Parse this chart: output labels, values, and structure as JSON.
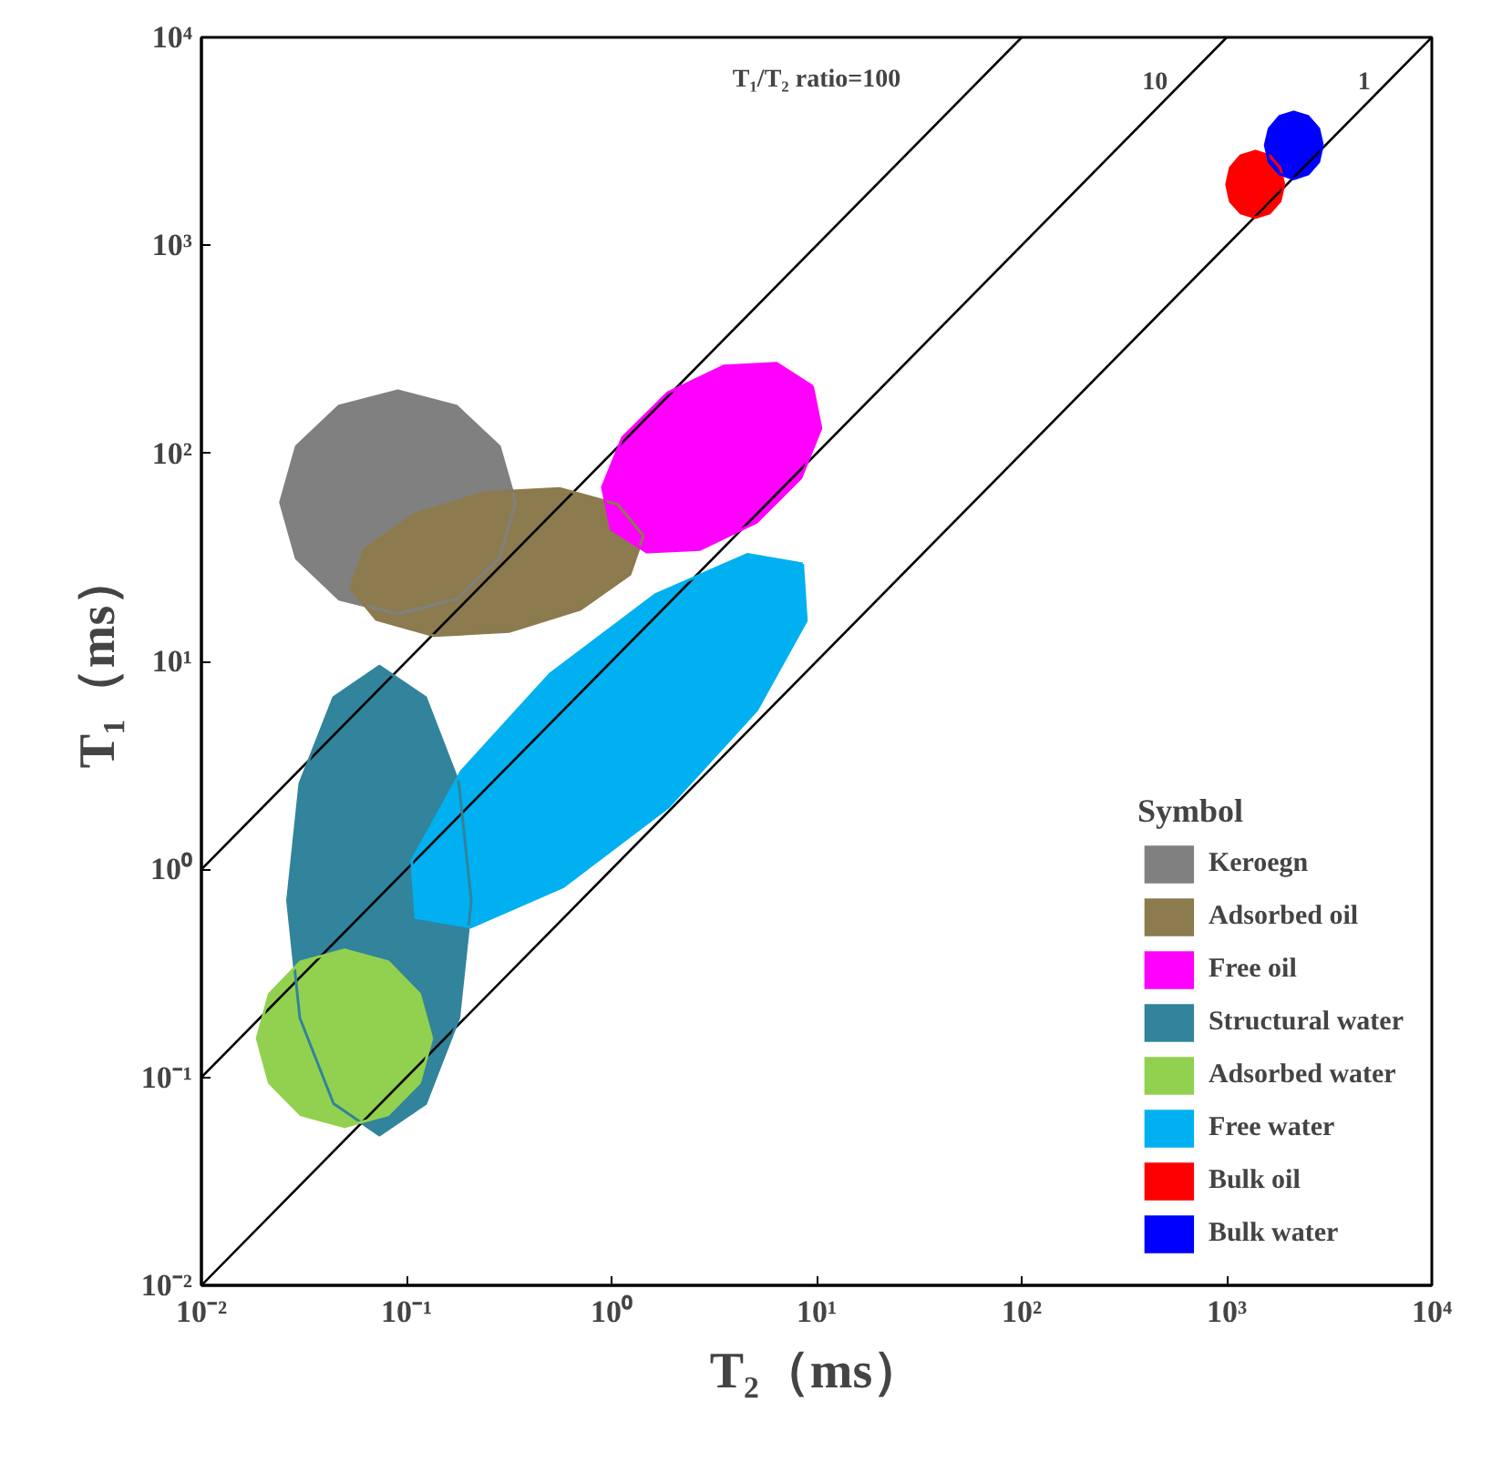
{
  "chart_data": {
    "type": "area",
    "xlabel": "T₂（ms）",
    "ylabel": "T₁（ms）",
    "legend_title": "Symbol",
    "legend": "bottom right",
    "grid": false,
    "log": "xy",
    "xlim": [
      0.01,
      10000
    ],
    "ylim": [
      0.01,
      10000
    ],
    "xticks": [
      {
        "value": 0.01,
        "label": "10⁻²"
      },
      {
        "value": 0.1,
        "label": "10⁻¹"
      },
      {
        "value": 1,
        "label": "10⁰"
      },
      {
        "value": 10,
        "label": "10¹"
      },
      {
        "value": 100,
        "label": "10²"
      },
      {
        "value": 1000,
        "label": "10³"
      },
      {
        "value": 10000,
        "label": "10⁴"
      }
    ],
    "yticks": [
      {
        "value": 0.01,
        "label": "10⁻²"
      },
      {
        "value": 0.1,
        "label": "10⁻¹"
      },
      {
        "value": 1,
        "label": "10⁰"
      },
      {
        "value": 10,
        "label": "10¹"
      },
      {
        "value": 100,
        "label": "10²"
      },
      {
        "value": 1000,
        "label": "10³"
      },
      {
        "value": 10000,
        "label": "10⁴"
      }
    ],
    "annotations": [
      "T₁/T₂ ratio=100",
      "10",
      "1"
    ],
    "series": [
      {
        "name": "Keroegn",
        "color": "#808080",
        "x": [
          0.34,
          0.284,
          0.175,
          0.0908,
          0.0469,
          0.029,
          0.0243,
          0.029,
          0.0469,
          0.0908,
          0.175,
          0.284
        ],
        "values": [
          58.1,
          108,
          169,
          200,
          169,
          108,
          58.1,
          31.3,
          19.9,
          16.9,
          19.9,
          31.3
        ]
      },
      {
        "name": "Adsorbed oil",
        "color": "#8c7b4e",
        "x": [
          1.43,
          1.07,
          0.558,
          0.241,
          0.108,
          0.0621,
          0.0533,
          0.0713,
          0.136,
          0.316,
          0.706,
          1.23
        ],
        "values": [
          40.2,
          56.9,
          67.8,
          65.0,
          50.7,
          34.4,
          22.5,
          15.9,
          13.3,
          13.9,
          17.8,
          26.2
        ]
      },
      {
        "name": "Free oil",
        "color": "#ff00ff",
        "x": [
          9.55,
          6.38,
          3.52,
          1.87,
          1.13,
          0.902,
          0.995,
          1.49,
          2.7,
          5.09,
          8.39,
          10.5
        ],
        "values": [
          210,
          271,
          263,
          195,
          119,
          68.7,
          43.2,
          33.5,
          34.5,
          46.6,
          76.2,
          132
        ]
      },
      {
        "name": "Structural water",
        "color": "#31849b",
        "x": [
          0.207,
          0.18,
          0.124,
          0.0738,
          0.0441,
          0.0302,
          0.0263,
          0.0302,
          0.0441,
          0.0738,
          0.124,
          0.18
        ],
        "values": [
          0.708,
          2.59,
          6.7,
          9.48,
          6.7,
          2.59,
          0.708,
          0.193,
          0.0748,
          0.0528,
          0.0748,
          0.193
        ]
      },
      {
        "name": "Adsorbed water",
        "color": "#92d050",
        "x": [
          0.133,
          0.116,
          0.0813,
          0.0499,
          0.0305,
          0.0214,
          0.0187,
          0.0214,
          0.0305,
          0.0499,
          0.0813,
          0.116
        ],
        "values": [
          0.154,
          0.251,
          0.36,
          0.41,
          0.36,
          0.251,
          0.154,
          0.0944,
          0.0661,
          0.0579,
          0.0661,
          0.0944
        ]
      },
      {
        "name": "Free water",
        "color": "#00b0f0",
        "x": [
          8.55,
          4.59,
          1.63,
          0.501,
          0.185,
          0.106,
          0.111,
          0.206,
          0.582,
          1.89,
          5.12,
          8.91
        ],
        "values": [
          29.4,
          32.7,
          20.9,
          8.69,
          2.96,
          1.1,
          0.587,
          0.528,
          0.826,
          1.99,
          5.85,
          15.7
        ]
      },
      {
        "name": "Bulk oil",
        "color": "#ff0000",
        "x": [
          1900,
          1820,
          1620,
          1380,
          1170,
          1040,
          998,
          1040,
          1170,
          1380,
          1620,
          1820
        ],
        "values": [
          1960,
          2360,
          2700,
          2840,
          2700,
          2360,
          1960,
          1630,
          1430,
          1360,
          1430,
          1630
        ]
      },
      {
        "name": "Bulk water",
        "color": "#0000ff",
        "x": [
          2930,
          2810,
          2490,
          2120,
          1810,
          1610,
          1540,
          1610,
          1810,
          2120,
          2490,
          2810
        ],
        "values": [
          3030,
          3640,
          4170,
          4380,
          4170,
          3640,
          3030,
          2520,
          2200,
          2090,
          2200,
          2520
        ]
      },
      {
        "type": "line",
        "color": "#000000",
        "x": [
          0.01,
          100
        ],
        "values": [
          1,
          10000
        ]
      },
      {
        "type": "line",
        "color": "#000000",
        "x": [
          0.01,
          1000
        ],
        "values": [
          0.1,
          10000
        ]
      },
      {
        "type": "line",
        "color": "#000000",
        "x": [
          0.01,
          10000
        ],
        "values": [
          0.01,
          10000
        ]
      }
    ]
  }
}
